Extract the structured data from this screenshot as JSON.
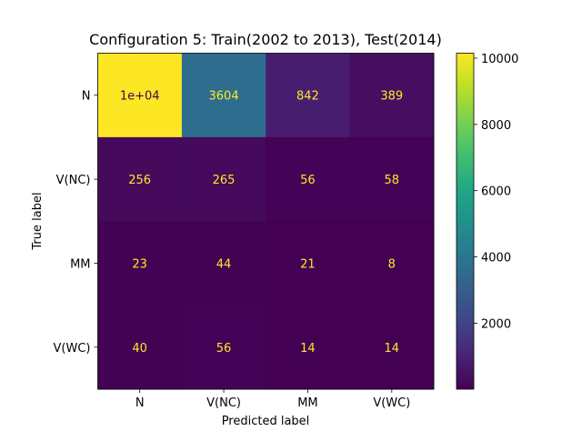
{
  "chart_data": {
    "type": "heatmap",
    "title": "Configuration 5: Train(2002 to 2013), Test(2014)",
    "xlabel": "Predicted label",
    "ylabel": "True label",
    "x_categories": [
      "N",
      "V(NC)",
      "MM",
      "V(WC)"
    ],
    "y_categories": [
      "N",
      "V(NC)",
      "MM",
      "V(WC)"
    ],
    "values": [
      [
        10150,
        3604,
        842,
        389
      ],
      [
        256,
        265,
        56,
        58
      ],
      [
        23,
        44,
        21,
        8
      ],
      [
        40,
        56,
        14,
        14
      ]
    ],
    "cell_labels": [
      [
        "1e+04",
        "3604",
        "842",
        "389"
      ],
      [
        "256",
        "265",
        "56",
        "58"
      ],
      [
        "23",
        "44",
        "21",
        "8"
      ],
      [
        "40",
        "56",
        "14",
        "14"
      ]
    ],
    "colormap": "viridis",
    "colorbar": {
      "range": [
        8,
        10150
      ],
      "ticks": [
        2000,
        4000,
        6000,
        8000,
        10000
      ],
      "tick_labels": [
        "2000",
        "4000",
        "6000",
        "8000",
        "10000"
      ]
    },
    "text_colors": {
      "on_dark": "#fde725",
      "on_light": "#440154"
    },
    "grid": false
  }
}
